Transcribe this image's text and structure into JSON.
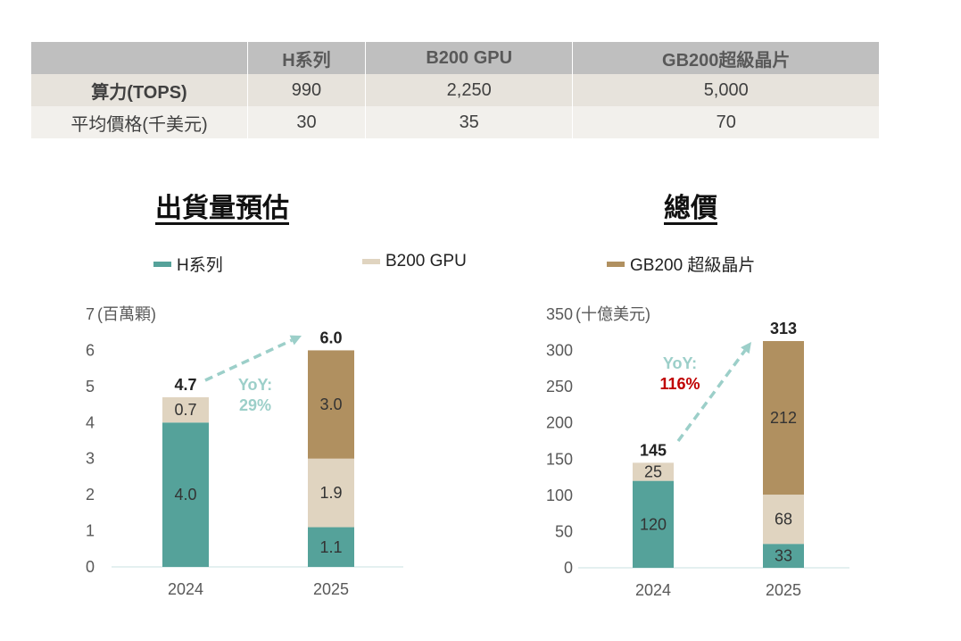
{
  "table": {
    "headers": [
      "",
      "H系列",
      "B200 GPU",
      "GB200超級晶片"
    ],
    "rows": [
      {
        "label": "算力(TOPS)",
        "values": [
          "990",
          "2,250",
          "5,000"
        ]
      },
      {
        "label": "平均價格(千美元)",
        "values": [
          "30",
          "35",
          "70"
        ]
      }
    ]
  },
  "legend": [
    {
      "name": "H系列",
      "color": "#55a29a"
    },
    {
      "name": "B200 GPU",
      "color": "#e0d4c0"
    },
    {
      "name": "GB200 超級晶片",
      "color": "#b09060"
    }
  ],
  "chart_data": [
    {
      "type": "bar",
      "stacked": true,
      "title": "出貨量預估",
      "ylabel": "(百萬顆)",
      "categories": [
        "2024",
        "2025"
      ],
      "series": [
        {
          "name": "H系列",
          "values": [
            4.0,
            1.1
          ],
          "labels": [
            "4.0",
            "1.1"
          ]
        },
        {
          "name": "B200 GPU",
          "values": [
            0.7,
            1.9
          ],
          "labels": [
            "0.7",
            "1.9"
          ]
        },
        {
          "name": "GB200 超級晶片",
          "values": [
            0,
            3.0
          ],
          "labels": [
            "",
            "3.0"
          ]
        }
      ],
      "totals": [
        4.7,
        6.0
      ],
      "total_labels": [
        "4.7",
        "6.0"
      ],
      "ylim": [
        0,
        7
      ],
      "yticks": [
        "0",
        "1",
        "2",
        "3",
        "4",
        "5",
        "6",
        "7"
      ],
      "yoy_label": "YoY:",
      "yoy_value": "29%",
      "yoy_color": "#9ccfc9",
      "yoy_value_color": "#9ccfc9"
    },
    {
      "type": "bar",
      "stacked": true,
      "title": "總價",
      "ylabel": "(十億美元)",
      "categories": [
        "2024",
        "2025"
      ],
      "series": [
        {
          "name": "H系列",
          "values": [
            120,
            33
          ],
          "labels": [
            "120",
            "33"
          ]
        },
        {
          "name": "B200 GPU",
          "values": [
            25,
            68
          ],
          "labels": [
            "25",
            "68"
          ]
        },
        {
          "name": "GB200 超級晶片",
          "values": [
            0,
            212
          ],
          "labels": [
            "",
            "212"
          ]
        }
      ],
      "totals": [
        145,
        313
      ],
      "total_labels": [
        "145",
        "313"
      ],
      "ylim": [
        0,
        350
      ],
      "yticks": [
        "0",
        "50",
        "100",
        "150",
        "200",
        "250",
        "300",
        "350"
      ],
      "yoy_label": "YoY:",
      "yoy_value": "116%",
      "yoy_color": "#9ccfc9",
      "yoy_value_color": "#c00000"
    }
  ]
}
